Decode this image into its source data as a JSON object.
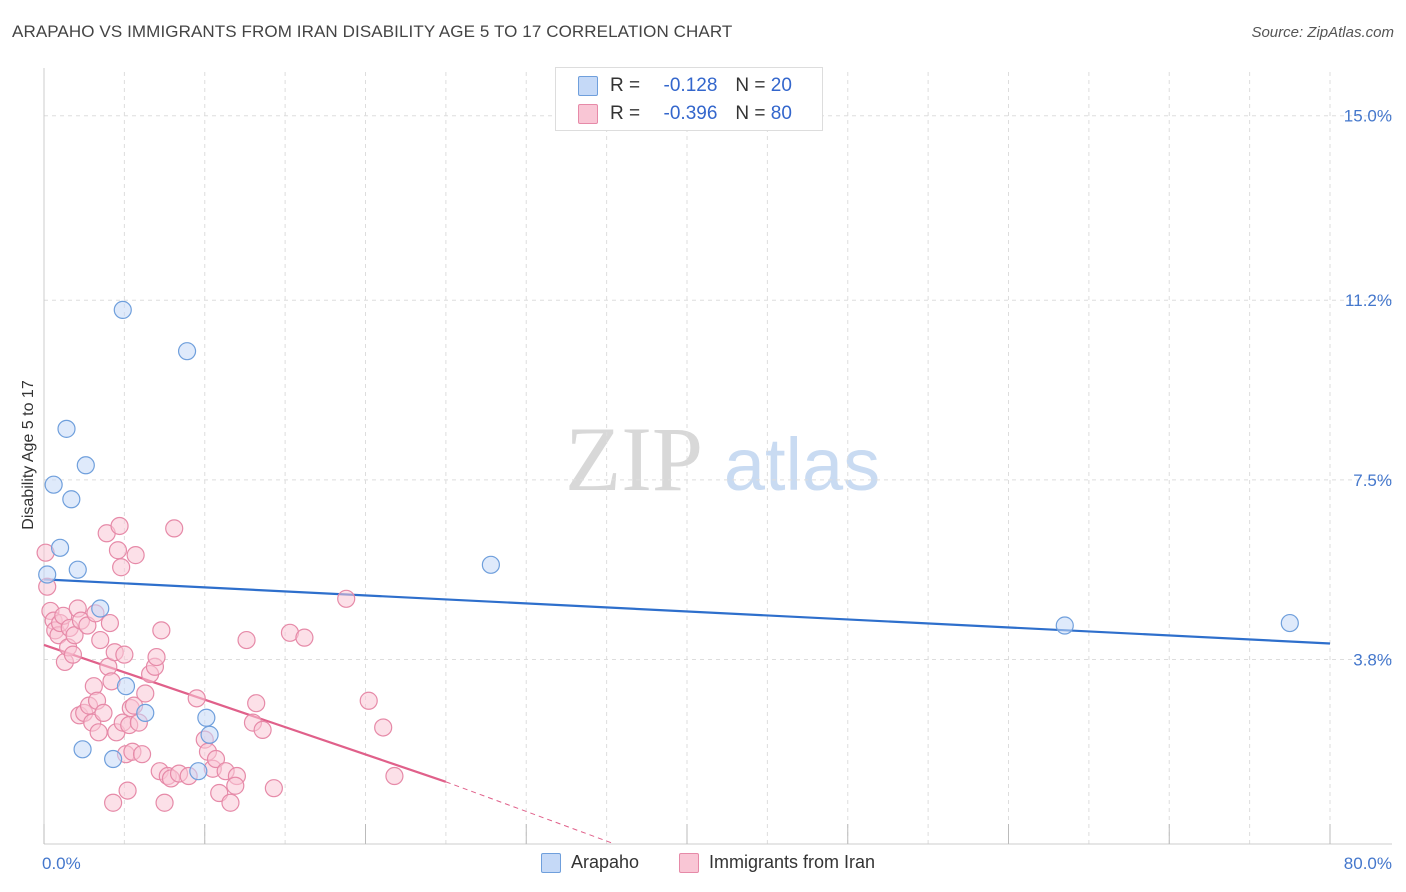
{
  "header": {
    "title": "ARAPAHO VS IMMIGRANTS FROM IRAN DISABILITY AGE 5 TO 17 CORRELATION CHART",
    "source": "Source: ZipAtlas.com"
  },
  "watermark": {
    "zip": "ZIP",
    "atlas": "atlas"
  },
  "legend": {
    "rows": [
      {
        "r_label": "R =",
        "r_value": "-0.128",
        "n_label": "N =",
        "n_value": "20"
      },
      {
        "r_label": "R =",
        "r_value": "-0.396",
        "n_label": "N =",
        "n_value": "80"
      }
    ]
  },
  "colors": {
    "arapaho_fill": "#c5d9f7",
    "arapaho_stroke": "#6f9fdc",
    "arapaho_line": "#2e6fcc",
    "iran_fill": "#f9c6d5",
    "iran_stroke": "#e68aa8",
    "iran_line": "#e0608a",
    "grid": "#dddddd",
    "tick": "#4477cc"
  },
  "chart_data": {
    "type": "scatter",
    "title": "ARAPAHO VS IMMIGRANTS FROM IRAN DISABILITY AGE 5 TO 17 CORRELATION CHART",
    "xlabel": "",
    "ylabel": "Disability Age 5 to 17",
    "xlim": [
      0,
      80
    ],
    "ylim": [
      0,
      15.9
    ],
    "x_ticks": [
      "0.0%",
      "80.0%"
    ],
    "y_ticks": [
      {
        "value": 3.8,
        "label": "3.8%"
      },
      {
        "value": 7.5,
        "label": "7.5%"
      },
      {
        "value": 11.2,
        "label": "11.2%"
      },
      {
        "value": 15.0,
        "label": "15.0%"
      }
    ],
    "grid": true,
    "legend_position": "top-center",
    "series": [
      {
        "name": "Arapaho",
        "r": -0.128,
        "n": 20,
        "trend": {
          "x": [
            0,
            80
          ],
          "y": [
            5.45,
            4.13
          ]
        },
        "points": [
          [
            0.2,
            5.55
          ],
          [
            0.6,
            7.4
          ],
          [
            1.0,
            6.1
          ],
          [
            1.4,
            8.55
          ],
          [
            1.7,
            7.1
          ],
          [
            2.1,
            5.65
          ],
          [
            2.4,
            1.95
          ],
          [
            2.6,
            7.8
          ],
          [
            3.5,
            4.85
          ],
          [
            4.3,
            1.75
          ],
          [
            4.9,
            11.0
          ],
          [
            5.1,
            3.25
          ],
          [
            6.3,
            2.7
          ],
          [
            8.9,
            10.15
          ],
          [
            9.6,
            1.5
          ],
          [
            10.1,
            2.6
          ],
          [
            10.3,
            2.25
          ],
          [
            27.8,
            5.75
          ],
          [
            63.5,
            4.5
          ],
          [
            77.5,
            4.55
          ]
        ]
      },
      {
        "name": "Immigrants from Iran",
        "r": -0.396,
        "n": 80,
        "trend": {
          "x": [
            0,
            25
          ],
          "y": [
            4.1,
            1.28
          ]
        },
        "trend_dashed": {
          "x": [
            25,
            35.5
          ],
          "y": [
            1.28,
            0.0
          ]
        },
        "points": [
          [
            0.1,
            6.0
          ],
          [
            0.2,
            5.3
          ],
          [
            0.4,
            4.8
          ],
          [
            0.6,
            4.6
          ],
          [
            0.7,
            4.4
          ],
          [
            0.9,
            4.3
          ],
          [
            1.0,
            4.55
          ],
          [
            1.2,
            4.7
          ],
          [
            1.3,
            3.75
          ],
          [
            1.5,
            4.05
          ],
          [
            1.6,
            4.45
          ],
          [
            1.8,
            3.9
          ],
          [
            1.9,
            4.3
          ],
          [
            2.1,
            4.85
          ],
          [
            2.2,
            2.65
          ],
          [
            2.3,
            4.6
          ],
          [
            2.5,
            2.7
          ],
          [
            2.7,
            4.5
          ],
          [
            2.8,
            2.85
          ],
          [
            3.0,
            2.5
          ],
          [
            3.1,
            3.25
          ],
          [
            3.2,
            4.75
          ],
          [
            3.3,
            2.95
          ],
          [
            3.4,
            2.3
          ],
          [
            3.5,
            4.2
          ],
          [
            3.7,
            2.7
          ],
          [
            3.9,
            6.4
          ],
          [
            4.0,
            3.65
          ],
          [
            4.1,
            4.55
          ],
          [
            4.2,
            3.35
          ],
          [
            4.3,
            0.85
          ],
          [
            4.4,
            3.95
          ],
          [
            4.5,
            2.3
          ],
          [
            4.6,
            6.05
          ],
          [
            4.7,
            6.55
          ],
          [
            4.8,
            5.7
          ],
          [
            4.9,
            2.5
          ],
          [
            5.0,
            3.9
          ],
          [
            5.1,
            1.85
          ],
          [
            5.2,
            1.1
          ],
          [
            5.3,
            2.45
          ],
          [
            5.4,
            2.8
          ],
          [
            5.5,
            1.9
          ],
          [
            5.6,
            2.85
          ],
          [
            5.7,
            5.95
          ],
          [
            5.9,
            2.5
          ],
          [
            6.1,
            1.85
          ],
          [
            6.3,
            3.1
          ],
          [
            6.6,
            3.5
          ],
          [
            6.9,
            3.65
          ],
          [
            7.0,
            3.85
          ],
          [
            7.2,
            1.5
          ],
          [
            7.3,
            4.4
          ],
          [
            7.5,
            0.85
          ],
          [
            7.7,
            1.4
          ],
          [
            7.9,
            1.35
          ],
          [
            8.1,
            6.5
          ],
          [
            8.4,
            1.45
          ],
          [
            9.0,
            1.4
          ],
          [
            9.5,
            3.0
          ],
          [
            10.0,
            2.15
          ],
          [
            10.2,
            1.9
          ],
          [
            10.5,
            1.55
          ],
          [
            10.7,
            1.75
          ],
          [
            10.9,
            1.05
          ],
          [
            11.3,
            1.5
          ],
          [
            11.6,
            0.85
          ],
          [
            12.0,
            1.4
          ],
          [
            12.6,
            4.2
          ],
          [
            13.0,
            2.5
          ],
          [
            13.2,
            2.9
          ],
          [
            13.6,
            2.35
          ],
          [
            14.3,
            1.15
          ],
          [
            15.3,
            4.35
          ],
          [
            16.2,
            4.25
          ],
          [
            18.8,
            5.05
          ],
          [
            20.2,
            2.95
          ],
          [
            21.1,
            2.4
          ],
          [
            21.8,
            1.4
          ],
          [
            11.9,
            1.2
          ]
        ]
      }
    ]
  },
  "bottom_legend": {
    "items": [
      "Arapaho",
      "Immigrants from Iran"
    ]
  }
}
